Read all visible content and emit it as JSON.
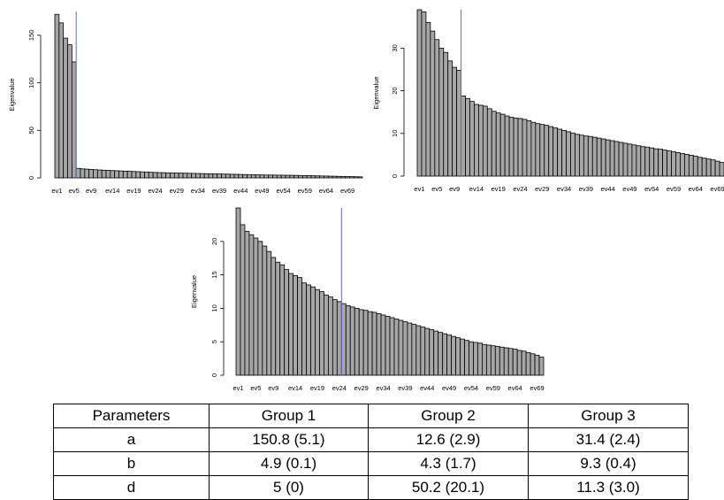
{
  "chart_data": [
    {
      "type": "bar",
      "ylabel": "Eigenvalue",
      "ylim": [
        0,
        175
      ],
      "yticks": [
        0,
        50,
        100,
        150
      ],
      "cutoff_after_category": "ev5",
      "bar_fill": "#a6a6a6",
      "cutoff_line_color": "#6666cc",
      "categories": [
        "ev1",
        "ev2",
        "ev3",
        "ev4",
        "ev5",
        "ev6",
        "ev7",
        "ev8",
        "ev9",
        "ev10",
        "ev11",
        "ev12",
        "ev13",
        "ev14",
        "ev15",
        "ev16",
        "ev17",
        "ev18",
        "ev19",
        "ev20",
        "ev21",
        "ev22",
        "ev23",
        "ev24",
        "ev25",
        "ev26",
        "ev27",
        "ev28",
        "ev29",
        "ev30",
        "ev31",
        "ev32",
        "ev33",
        "ev34",
        "ev35",
        "ev36",
        "ev37",
        "ev38",
        "ev39",
        "ev40",
        "ev41",
        "ev42",
        "ev43",
        "ev44",
        "ev45",
        "ev46",
        "ev47",
        "ev48",
        "ev49",
        "ev50",
        "ev51",
        "ev52",
        "ev53",
        "ev54",
        "ev55",
        "ev56",
        "ev57",
        "ev58",
        "ev59",
        "ev60",
        "ev61",
        "ev62",
        "ev63",
        "ev64",
        "ev65",
        "ev66",
        "ev67",
        "ev68",
        "ev69",
        "ev70",
        "ev71",
        "ev72"
      ],
      "tick_labels": [
        "ev1",
        "ev5",
        "ev9",
        "ev14",
        "ev19",
        "ev24",
        "ev29",
        "ev34",
        "ev39",
        "ev44",
        "ev49",
        "ev54",
        "ev59",
        "ev64",
        "ev69"
      ],
      "values": [
        172,
        163,
        147,
        140,
        122,
        10,
        9.5,
        9.2,
        8.9,
        8.6,
        8.3,
        8.1,
        7.9,
        7.7,
        7.5,
        7.3,
        7.1,
        6.9,
        6.7,
        6.5,
        6.3,
        6.1,
        5.9,
        5.7,
        5.5,
        5.4,
        5.3,
        5.2,
        5.1,
        5.0,
        4.9,
        4.8,
        4.7,
        4.6,
        4.5,
        4.4,
        4.3,
        4.2,
        4.1,
        4.0,
        3.9,
        3.8,
        3.7,
        3.6,
        3.5,
        3.4,
        3.3,
        3.2,
        3.1,
        3.0,
        2.95,
        2.9,
        2.85,
        2.8,
        2.75,
        2.7,
        2.6,
        2.5,
        2.4,
        2.3,
        2.2,
        2.1,
        2.0,
        1.9,
        1.8,
        1.7,
        1.6,
        1.5,
        1.4,
        1.3,
        1.2,
        1.1
      ]
    },
    {
      "type": "bar",
      "ylabel": "Eigenvalue",
      "ylim": [
        0,
        39
      ],
      "yticks": [
        0,
        10,
        20,
        30
      ],
      "cutoff_after_category": "ev10",
      "bar_fill": "#a6a6a6",
      "cutoff_line_color": "#6666cc",
      "categories": [
        "ev1",
        "ev2",
        "ev3",
        "ev4",
        "ev5",
        "ev6",
        "ev7",
        "ev8",
        "ev9",
        "ev10",
        "ev11",
        "ev12",
        "ev13",
        "ev14",
        "ev15",
        "ev16",
        "ev17",
        "ev18",
        "ev19",
        "ev20",
        "ev21",
        "ev22",
        "ev23",
        "ev24",
        "ev25",
        "ev26",
        "ev27",
        "ev28",
        "ev29",
        "ev30",
        "ev31",
        "ev32",
        "ev33",
        "ev34",
        "ev35",
        "ev36",
        "ev37",
        "ev38",
        "ev39",
        "ev40",
        "ev41",
        "ev42",
        "ev43",
        "ev44",
        "ev45",
        "ev46",
        "ev47",
        "ev48",
        "ev49",
        "ev50",
        "ev51",
        "ev52",
        "ev53",
        "ev54",
        "ev55",
        "ev56",
        "ev57",
        "ev58",
        "ev59",
        "ev60",
        "ev61",
        "ev62",
        "ev63",
        "ev64",
        "ev65",
        "ev66",
        "ev67",
        "ev68",
        "ev69",
        "ev70"
      ],
      "tick_labels": [
        "ev1",
        "ev5",
        "ev9",
        "ev14",
        "ev19",
        "ev24",
        "ev29",
        "ev34",
        "ev39",
        "ev44",
        "ev49",
        "ev54",
        "ev59",
        "ev64",
        "ev69"
      ],
      "values": [
        39,
        38.5,
        36,
        34,
        32,
        30,
        29,
        27,
        25.5,
        24.8,
        18.8,
        18.2,
        17.5,
        16.8,
        16.6,
        16.4,
        15.8,
        15.2,
        14.8,
        14.5,
        14.1,
        13.8,
        13.6,
        13.5,
        13.3,
        13.0,
        12.6,
        12.3,
        12.1,
        11.9,
        11.6,
        11.3,
        11.0,
        10.7,
        10.4,
        10.1,
        9.8,
        9.6,
        9.4,
        9.3,
        9.1,
        8.9,
        8.7,
        8.5,
        8.3,
        8.1,
        7.9,
        7.7,
        7.5,
        7.3,
        7.1,
        6.9,
        6.8,
        6.6,
        6.4,
        6.3,
        6.1,
        5.9,
        5.7,
        5.5,
        5.3,
        5.1,
        4.9,
        4.7,
        4.4,
        4.2,
        4.0,
        3.8,
        3.5,
        3.2
      ]
    },
    {
      "type": "bar",
      "ylabel": "Eigenvalue",
      "ylim": [
        0,
        25
      ],
      "yticks": [
        0,
        5,
        10,
        15,
        20
      ],
      "cutoff_after_category": "ev24",
      "bar_fill": "#a6a6a6",
      "cutoff_line_color": "#6666cc",
      "categories": [
        "ev1",
        "ev2",
        "ev3",
        "ev4",
        "ev5",
        "ev6",
        "ev7",
        "ev8",
        "ev9",
        "ev10",
        "ev11",
        "ev12",
        "ev13",
        "ev14",
        "ev15",
        "ev16",
        "ev17",
        "ev18",
        "ev19",
        "ev20",
        "ev21",
        "ev22",
        "ev23",
        "ev24",
        "ev25",
        "ev26",
        "ev27",
        "ev28",
        "ev29",
        "ev30",
        "ev31",
        "ev32",
        "ev33",
        "ev34",
        "ev35",
        "ev36",
        "ev37",
        "ev38",
        "ev39",
        "ev40",
        "ev41",
        "ev42",
        "ev43",
        "ev44",
        "ev45",
        "ev46",
        "ev47",
        "ev48",
        "ev49",
        "ev50",
        "ev51",
        "ev52",
        "ev53",
        "ev54",
        "ev55",
        "ev56",
        "ev57",
        "ev58",
        "ev59",
        "ev60",
        "ev61",
        "ev62",
        "ev63",
        "ev64",
        "ev65",
        "ev66",
        "ev67",
        "ev68",
        "ev69",
        "ev70"
      ],
      "tick_labels": [
        "ev1",
        "ev5",
        "ev9",
        "ev14",
        "ev19",
        "ev24",
        "ev29",
        "ev34",
        "ev39",
        "ev44",
        "ev49",
        "ev54",
        "ev59",
        "ev64",
        "ev69"
      ],
      "values": [
        25,
        22.5,
        21.5,
        21,
        20.5,
        20,
        19.3,
        18.5,
        17.6,
        16.9,
        16.5,
        15.8,
        15.2,
        14.9,
        14.6,
        13.8,
        13.5,
        13.2,
        12.8,
        12.5,
        12.0,
        11.7,
        11.3,
        11.0,
        10.7,
        10.4,
        10.2,
        10.0,
        9.8,
        9.7,
        9.5,
        9.4,
        9.2,
        9.0,
        8.8,
        8.6,
        8.4,
        8.2,
        8.0,
        7.8,
        7.6,
        7.4,
        7.2,
        7.0,
        6.8,
        6.6,
        6.4,
        6.2,
        6.0,
        5.8,
        5.6,
        5.4,
        5.2,
        5.0,
        4.9,
        4.8,
        4.6,
        4.5,
        4.4,
        4.3,
        4.2,
        4.1,
        4.0,
        3.9,
        3.7,
        3.6,
        3.4,
        3.2,
        3.0,
        2.7
      ]
    }
  ],
  "table": {
    "headers": [
      "Parameters",
      "Group 1",
      "Group 2",
      "Group 3"
    ],
    "rows": [
      [
        "a",
        "150.8 (5.1)",
        "12.6 (2.9)",
        "31.4 (2.4)"
      ],
      [
        "b",
        "4.9 (0.1)",
        "4.3 (1.7)",
        "9.3 (0.4)"
      ],
      [
        "d",
        "5 (0)",
        "50.2 (20.1)",
        "11.3 (3.0)"
      ]
    ]
  }
}
